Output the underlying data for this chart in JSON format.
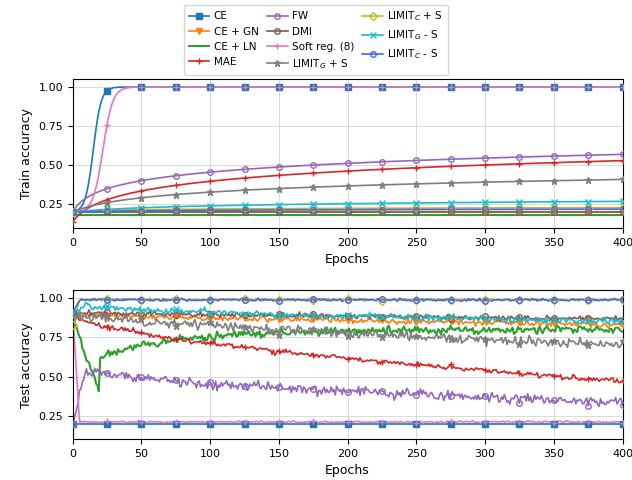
{
  "series_configs": {
    "CE": {
      "color": "#1f77b4",
      "marker": "s",
      "ms": 4,
      "lw": 1.2,
      "mfc": "#1f77b4"
    },
    "CE + GN": {
      "color": "#ff7f0e",
      "marker": "v",
      "ms": 4,
      "lw": 1.2,
      "mfc": "#ff7f0e"
    },
    "CE + LN": {
      "color": "#2ca02c",
      "marker": null,
      "ms": 0,
      "lw": 1.5,
      "mfc": "#2ca02c"
    },
    "MAE": {
      "color": "#d62728",
      "marker": "+",
      "ms": 5,
      "lw": 1.2,
      "mfc": "#d62728"
    },
    "FW": {
      "color": "#9467bd",
      "marker": "o",
      "ms": 4,
      "lw": 1.2,
      "mfc": "none"
    },
    "DMI": {
      "color": "#8c564b",
      "marker": "o",
      "ms": 4,
      "lw": 1.2,
      "mfc": "none"
    },
    "Soft reg. (8)": {
      "color": "#e377c2",
      "marker": "+",
      "ms": 5,
      "lw": 1.2,
      "mfc": "#e377c2"
    },
    "LIMIT_G + S": {
      "color": "#7f7f7f",
      "marker": "*",
      "ms": 5,
      "lw": 1.2,
      "mfc": "#7f7f7f"
    },
    "LIMIT_C + S": {
      "color": "#bcbd22",
      "marker": "D",
      "ms": 4,
      "lw": 1.2,
      "mfc": "none"
    },
    "LIMIT_G - S": {
      "color": "#17becf",
      "marker": "x",
      "ms": 5,
      "lw": 1.2,
      "mfc": "#17becf"
    },
    "LIMIT_C - S": {
      "color": "#4169e1",
      "marker": "o",
      "ms": 4,
      "lw": 1.2,
      "mfc": "none"
    }
  },
  "legend_labels": [
    "CE",
    "CE + GN",
    "CE + LN",
    "MAE",
    "FW",
    "DMI",
    "Soft reg. (8)",
    "LIMIT_G + S",
    "LIMIT_C + S",
    "LIMIT_G - S",
    "LIMIT_C - S"
  ],
  "legend_display": [
    "CE",
    "CE + GN",
    "CE + LN",
    "MAE",
    "FW",
    "DMI",
    "Soft reg. (8)",
    "LIMIT$_G$ + S",
    "LIMIT$_C$ + S",
    "LIMIT$_G$ - S",
    "LIMIT$_C$ - S"
  ],
  "xlabel": "Epochs",
  "ylabel_train": "Train accuracy",
  "ylabel_test": "Test accuracy",
  "xlim": [
    0,
    400
  ],
  "ylim": [
    0.1,
    1.05
  ],
  "yticks": [
    0.25,
    0.5,
    0.75,
    1.0
  ],
  "xticks": [
    0,
    50,
    100,
    150,
    200,
    250,
    300,
    350,
    400
  ],
  "marker_epochs": [
    0,
    25,
    50,
    75,
    100,
    125,
    150,
    175,
    200,
    225,
    250,
    275,
    300,
    325,
    350,
    375,
    400
  ]
}
